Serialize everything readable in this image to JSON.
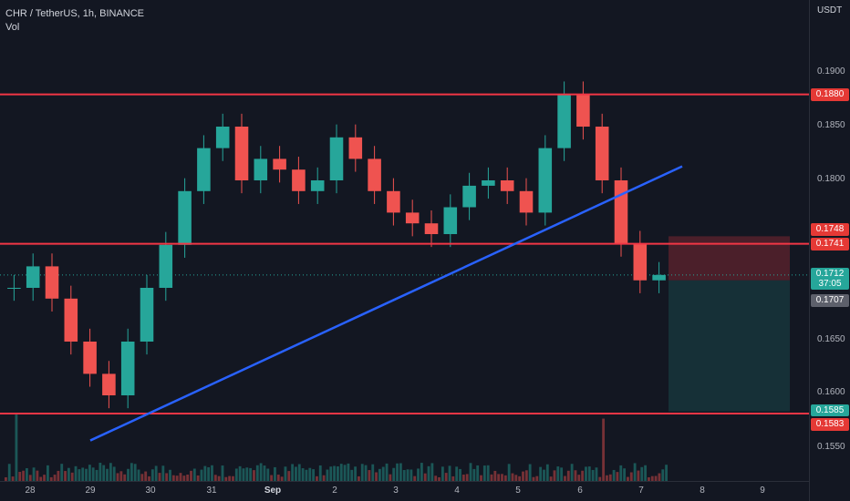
{
  "legend": {
    "symbol_line": "CHR / TetherUS, 1h, BINANCE",
    "volume_label": "Vol"
  },
  "price_scale": {
    "unit": "USDT",
    "ticks": [
      "0.1900",
      "0.1850",
      "0.1800",
      "0.1650",
      "0.1600",
      "0.1550"
    ],
    "tags": {
      "top_resistance": "0.1880",
      "stop_level": "0.1748",
      "mid_resistance": "0.1741",
      "last_price": "0.1712",
      "countdown": "37:05",
      "entry": "0.1707",
      "target": "0.1585",
      "bottom_support": "0.1583"
    }
  },
  "time_scale": {
    "ticks": [
      "28",
      "29",
      "30",
      "31",
      "Sep",
      "2",
      "3",
      "4",
      "5",
      "6",
      "7",
      "8",
      "9"
    ]
  },
  "colors": {
    "up": "#26a69a",
    "down": "#ef5350",
    "level_line": "#f23645",
    "trendline": "#2962ff",
    "stop_zone": "rgba(242,54,69,0.25)",
    "target_zone": "rgba(38,166,154,0.18)"
  },
  "chart_data": {
    "type": "candlestick",
    "y_range": [
      0.1525,
      0.195
    ],
    "horizontal_levels": [
      0.188,
      0.1741,
      0.1583
    ],
    "trendline": {
      "from": [
        "29",
        0.1558
      ],
      "to": [
        "7",
        0.1813
      ]
    },
    "position": {
      "entry": 0.1707,
      "stop": 0.1748,
      "target": 0.1585
    },
    "last_price": 0.1712,
    "closes_approx": [
      0.17,
      0.172,
      0.169,
      0.165,
      0.162,
      0.16,
      0.165,
      0.17,
      0.174,
      0.179,
      0.183,
      0.185,
      0.18,
      0.182,
      0.181,
      0.179,
      0.18,
      0.184,
      0.182,
      0.179,
      0.177,
      0.176,
      0.175,
      0.1775,
      0.1795,
      0.18,
      0.179,
      0.177,
      0.183,
      0.188,
      0.185,
      0.18,
      0.1741,
      0.1707,
      0.1712
    ]
  }
}
